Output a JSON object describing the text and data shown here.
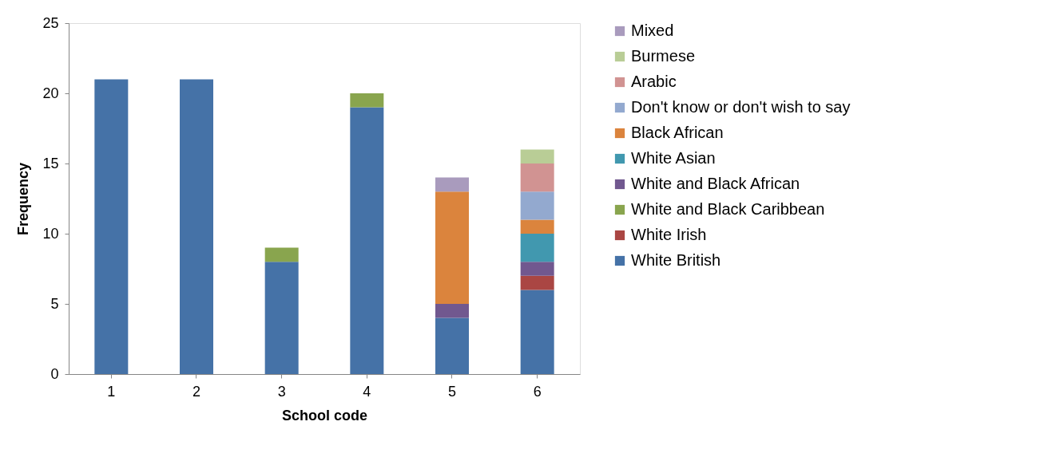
{
  "chart_data": {
    "type": "bar",
    "stacked": true,
    "xlabel": "School code",
    "ylabel": "Frequency",
    "categories": [
      "1",
      "2",
      "3",
      "4",
      "5",
      "6"
    ],
    "ylim": [
      0,
      25
    ],
    "yticks": [
      0,
      5,
      10,
      15,
      20,
      25
    ],
    "grid": false,
    "legend": "right",
    "series": [
      {
        "name": "White British",
        "color": "#4572a7",
        "values": [
          21,
          21,
          8,
          19,
          4,
          6
        ]
      },
      {
        "name": "White Irish",
        "color": "#aa4643",
        "values": [
          null,
          null,
          null,
          null,
          null,
          1
        ]
      },
      {
        "name": "White and Black Caribbean",
        "color": "#89a54e",
        "values": [
          null,
          null,
          1,
          1,
          null,
          null
        ]
      },
      {
        "name": "White and Black African",
        "color": "#71588f",
        "values": [
          null,
          null,
          null,
          null,
          1,
          1
        ]
      },
      {
        "name": "White Asian",
        "color": "#4198af",
        "values": [
          null,
          null,
          null,
          null,
          null,
          2
        ]
      },
      {
        "name": "Black African",
        "color": "#db843d",
        "values": [
          null,
          null,
          null,
          null,
          8,
          1
        ]
      },
      {
        "name": "Don't know or don't wish to say",
        "color": "#93a9cf",
        "values": [
          null,
          null,
          null,
          null,
          null,
          2
        ]
      },
      {
        "name": "Arabic",
        "color": "#d19392",
        "values": [
          null,
          null,
          null,
          null,
          null,
          2
        ]
      },
      {
        "name": "Burmese",
        "color": "#b9cd96",
        "values": [
          null,
          null,
          null,
          null,
          null,
          1
        ]
      },
      {
        "name": "Mixed",
        "color": "#a99bbd",
        "values": [
          null,
          null,
          null,
          null,
          1,
          null
        ]
      }
    ]
  }
}
